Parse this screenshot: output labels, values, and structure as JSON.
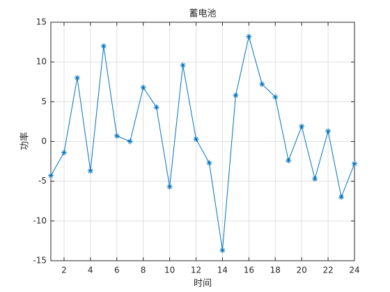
{
  "chart_data": {
    "type": "line",
    "title": "蓄电池",
    "x_label": "时间",
    "y_label": "功率",
    "x": [
      1,
      2,
      3,
      4,
      5,
      6,
      7,
      8,
      9,
      10,
      11,
      12,
      13,
      14,
      15,
      16,
      17,
      18,
      19,
      20,
      21,
      22,
      23,
      24
    ],
    "series": [
      {
        "color": "#0072bd",
        "values": [
          -4.3,
          -1.4,
          8.0,
          -3.7,
          12.0,
          0.7,
          0.0,
          6.8,
          4.3,
          -5.7,
          9.6,
          0.3,
          -2.7,
          -13.7,
          5.8,
          13.2,
          7.2,
          5.6,
          -2.4,
          1.9,
          -4.7,
          1.3,
          -7.0,
          -2.8
        ]
      }
    ],
    "xlim": [
      1,
      24
    ],
    "xticks": [
      2,
      4,
      6,
      8,
      10,
      12,
      14,
      16,
      18,
      20,
      22,
      24
    ],
    "ylim": [
      -15,
      15
    ],
    "yticks": [
      -15,
      -10,
      -5,
      0,
      5,
      10,
      15
    ],
    "grid": true
  }
}
